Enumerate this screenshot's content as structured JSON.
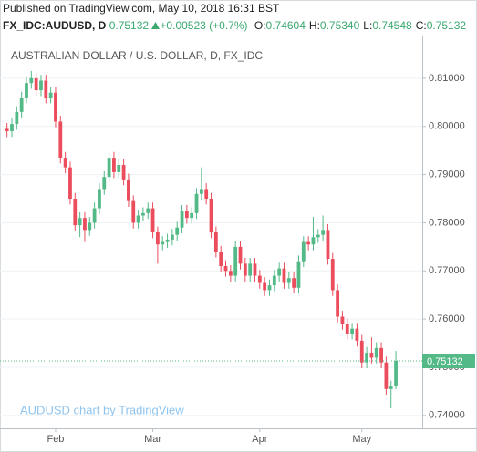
{
  "header": {
    "published": "Published on TradingView.com, May 10, 2018 16:31 BST",
    "symbol": "FX_IDC:AUDUSD, D",
    "last": "0.75132",
    "change": "+0.00523 (+0.7%)",
    "ohlc": [
      {
        "label": "O:",
        "value": "0.74604"
      },
      {
        "label": "H:",
        "value": "0.75340"
      },
      {
        "label": "L:",
        "value": "0.74548"
      },
      {
        "label": "C:",
        "value": "0.75132"
      }
    ]
  },
  "chart_data": {
    "type": "candlestick",
    "title": "AUSTRALIAN DOLLAR / U.S. DOLLAR, D, FX_IDC",
    "watermark": "AUDUSD chart by TradingView",
    "up_color": "#53b987",
    "down_color": "#eb4d5c",
    "grid": true,
    "ylim": [
      0.7377,
      0.8183
    ],
    "yticks": [
      {
        "value": 0.74,
        "label": "0.74000"
      },
      {
        "value": 0.75,
        "label": "0.75000"
      },
      {
        "value": 0.76,
        "label": "0.76000"
      },
      {
        "value": 0.77,
        "label": "0.77000"
      },
      {
        "value": 0.78,
        "label": "0.78000"
      },
      {
        "value": 0.79,
        "label": "0.79000"
      },
      {
        "value": 0.8,
        "label": "0.80000"
      },
      {
        "value": 0.81,
        "label": "0.81000"
      }
    ],
    "categories": [
      null,
      null,
      null,
      null,
      null,
      null,
      null,
      null,
      null,
      null,
      "Feb",
      null,
      null,
      null,
      null,
      null,
      null,
      null,
      null,
      null,
      null,
      null,
      null,
      null,
      null,
      null,
      null,
      null,
      null,
      null,
      "Mar",
      null,
      null,
      null,
      null,
      null,
      null,
      null,
      null,
      null,
      null,
      null,
      null,
      null,
      null,
      null,
      null,
      null,
      null,
      null,
      null,
      null,
      "Apr",
      null,
      null,
      null,
      null,
      null,
      null,
      null,
      null,
      null,
      null,
      null,
      null,
      null,
      null,
      null,
      null,
      null,
      null,
      null,
      null,
      "May",
      null,
      null,
      null,
      null,
      null,
      null,
      null
    ],
    "open": [
      0.7995,
      0.799,
      0.8005,
      0.803,
      0.806,
      0.809,
      0.81,
      0.8075,
      0.8095,
      0.806,
      0.807,
      0.801,
      0.7935,
      0.7915,
      0.785,
      0.7795,
      0.781,
      0.7785,
      0.78,
      0.783,
      0.787,
      0.7895,
      0.7935,
      0.7905,
      0.792,
      0.789,
      0.7845,
      0.78,
      0.7815,
      0.782,
      0.783,
      0.778,
      0.7755,
      0.776,
      0.7765,
      0.7775,
      0.779,
      0.7825,
      0.781,
      0.782,
      0.786,
      0.787,
      0.785,
      0.778,
      0.774,
      0.771,
      0.77,
      0.769,
      0.775,
      0.7715,
      0.769,
      0.7715,
      0.769,
      0.7675,
      0.766,
      0.767,
      0.769,
      0.7705,
      0.7675,
      0.7685,
      0.7665,
      0.772,
      0.776,
      0.7755,
      0.777,
      0.7775,
      0.7785,
      0.7725,
      0.766,
      0.7605,
      0.759,
      0.757,
      0.758,
      0.7555,
      0.751,
      0.753,
      0.752,
      0.754,
      0.751,
      0.7455,
      0.74604
    ],
    "high": [
      0.8007,
      0.8017,
      0.8042,
      0.8072,
      0.8102,
      0.8115,
      0.8112,
      0.8107,
      0.8107,
      0.8082,
      0.8082,
      0.8022,
      0.7947,
      0.7927,
      0.7862,
      0.7822,
      0.7822,
      0.7812,
      0.7842,
      0.7882,
      0.7907,
      0.795,
      0.7947,
      0.7932,
      0.7932,
      0.7902,
      0.7857,
      0.7827,
      0.7832,
      0.7842,
      0.7842,
      0.7792,
      0.7772,
      0.7777,
      0.7787,
      0.7802,
      0.7837,
      0.7837,
      0.7832,
      0.7872,
      0.7915,
      0.7882,
      0.7862,
      0.7792,
      0.7752,
      0.7722,
      0.7712,
      0.7762,
      0.7762,
      0.7727,
      0.7727,
      0.7727,
      0.7702,
      0.7687,
      0.7682,
      0.7702,
      0.7717,
      0.7717,
      0.7697,
      0.7697,
      0.7732,
      0.7772,
      0.7772,
      0.7812,
      0.7787,
      0.7815,
      0.7797,
      0.7737,
      0.7672,
      0.7617,
      0.7602,
      0.7592,
      0.7592,
      0.7567,
      0.7542,
      0.7562,
      0.7552,
      0.7552,
      0.7522,
      0.7472,
      0.7534
    ],
    "low": [
      0.7978,
      0.7978,
      0.7993,
      0.8018,
      0.8048,
      0.8078,
      0.8063,
      0.8063,
      0.8048,
      0.8048,
      0.7998,
      0.7923,
      0.7903,
      0.7838,
      0.7783,
      0.777,
      0.776,
      0.7773,
      0.7788,
      0.7818,
      0.7858,
      0.7883,
      0.7893,
      0.7893,
      0.7878,
      0.7833,
      0.7788,
      0.7788,
      0.7803,
      0.7808,
      0.7768,
      0.7715,
      0.7743,
      0.7748,
      0.7753,
      0.7763,
      0.7778,
      0.7798,
      0.7798,
      0.7808,
      0.7848,
      0.7838,
      0.7768,
      0.7728,
      0.7698,
      0.7688,
      0.7678,
      0.7678,
      0.7703,
      0.7678,
      0.7678,
      0.7678,
      0.7663,
      0.7648,
      0.7648,
      0.7658,
      0.7678,
      0.7663,
      0.7663,
      0.7653,
      0.7653,
      0.7708,
      0.7743,
      0.7743,
      0.7758,
      0.7763,
      0.7713,
      0.7648,
      0.7593,
      0.7578,
      0.7558,
      0.7558,
      0.7543,
      0.7498,
      0.7498,
      0.7508,
      0.7508,
      0.7498,
      0.7443,
      0.7415,
      0.74548
    ],
    "close": [
      0.799,
      0.8005,
      0.803,
      0.806,
      0.809,
      0.81,
      0.8075,
      0.8095,
      0.806,
      0.807,
      0.801,
      0.7935,
      0.7915,
      0.785,
      0.7795,
      0.781,
      0.7785,
      0.78,
      0.783,
      0.787,
      0.7895,
      0.7935,
      0.7905,
      0.792,
      0.789,
      0.7845,
      0.78,
      0.7815,
      0.782,
      0.783,
      0.778,
      0.7755,
      0.776,
      0.7765,
      0.7775,
      0.779,
      0.7825,
      0.781,
      0.782,
      0.786,
      0.787,
      0.785,
      0.778,
      0.774,
      0.771,
      0.77,
      0.769,
      0.775,
      0.7715,
      0.769,
      0.7715,
      0.769,
      0.7675,
      0.766,
      0.767,
      0.769,
      0.7705,
      0.7675,
      0.7685,
      0.7665,
      0.772,
      0.776,
      0.7755,
      0.777,
      0.7775,
      0.7785,
      0.7725,
      0.766,
      0.7605,
      0.759,
      0.757,
      0.758,
      0.7555,
      0.751,
      0.753,
      0.752,
      0.754,
      0.751,
      0.7455,
      0.746,
      0.75132
    ]
  }
}
